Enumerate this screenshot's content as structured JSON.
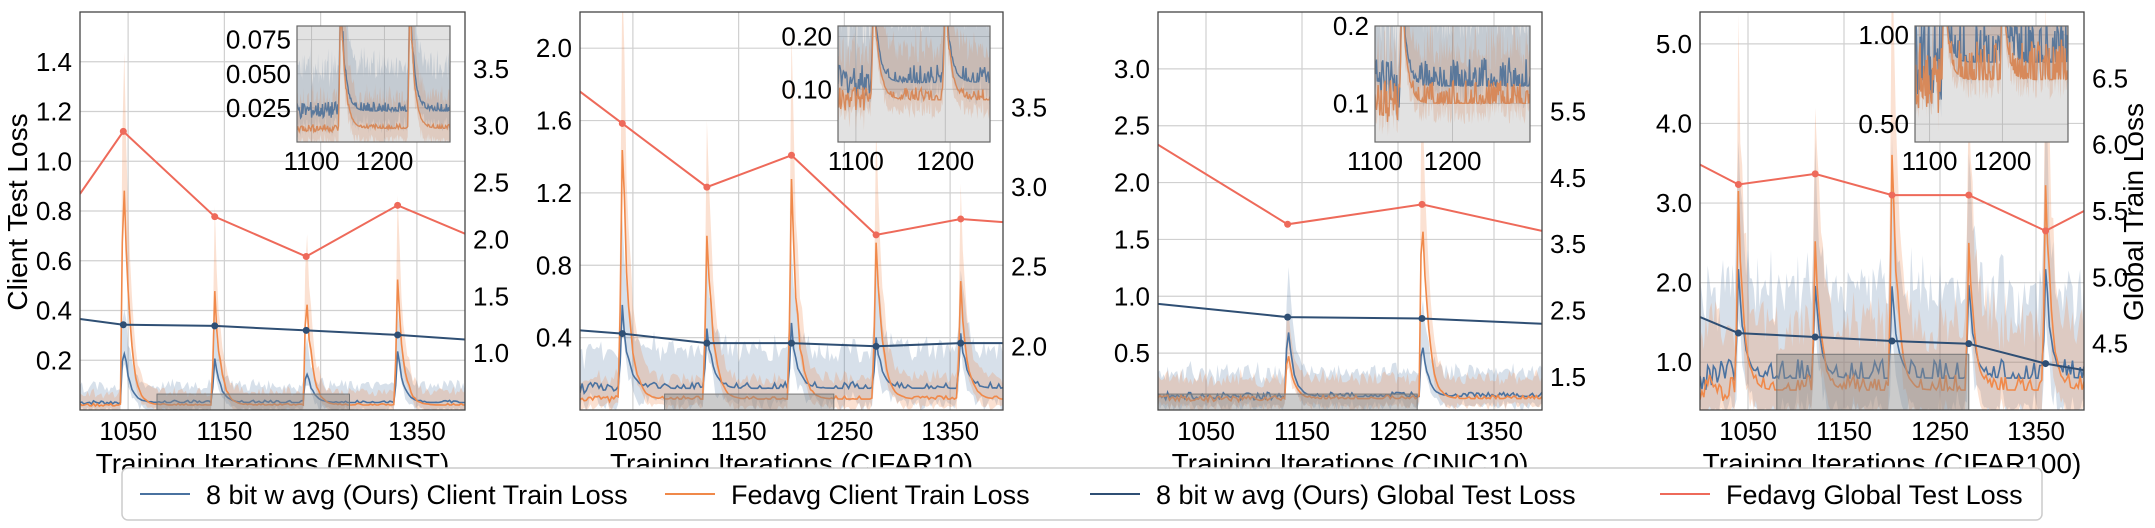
{
  "legend": [
    {
      "label": "8 bit w avg (Ours) Client Train Loss",
      "color": "#4a72a0"
    },
    {
      "label": "Fedavg Client Train Loss",
      "color": "#f0894a"
    },
    {
      "label": "8 bit w avg (Ours) Global Test Loss",
      "color": "#2f4f74"
    },
    {
      "label": "Fedavg Global Test Loss",
      "color": "#ee6a5a"
    }
  ],
  "left_axis_title": "Client Test Loss",
  "right_axis_title": "Global Train Loss",
  "chart_data": [
    {
      "type": "line",
      "xlabel": "Training Iterations (FMNIST)",
      "xlim": [
        1000,
        1400
      ],
      "xticks": [
        "1050",
        "1150",
        "1250",
        "1350"
      ],
      "ylim_left": [
        0,
        1.6
      ],
      "yticks_left": [
        "0.2",
        "0.4",
        "0.6",
        "0.8",
        "1.0",
        "1.2",
        "1.4"
      ],
      "ylim_right": [
        0.5,
        4.0
      ],
      "yticks_right": [
        "1.0",
        "1.5",
        "2.0",
        "2.5",
        "3.0",
        "3.5"
      ],
      "spikes": [
        1045,
        1140,
        1235,
        1330
      ],
      "ours_client": {
        "base": 0.03,
        "peaks": [
          0.28,
          0.22,
          0.17,
          0.24
        ]
      },
      "fedavg_client": {
        "base": 0.02,
        "peaks": [
          1.0,
          0.48,
          0.5,
          0.55
        ]
      },
      "global_series": [
        {
          "name": "8 bit w avg (Ours) Global Test Loss",
          "x": [
            1000,
            1045,
            1140,
            1235,
            1330,
            1400
          ],
          "y": [
            1.3,
            1.25,
            1.24,
            1.2,
            1.16,
            1.12
          ]
        },
        {
          "name": "Fedavg Global Test Loss",
          "x": [
            1000,
            1045,
            1140,
            1235,
            1330,
            1400
          ],
          "y": [
            2.4,
            2.95,
            2.2,
            1.85,
            2.3,
            2.05
          ]
        }
      ],
      "highlight": [
        1080,
        1280
      ],
      "inset": {
        "xlim": [
          1080,
          1290
        ],
        "ylim": [
          0.0,
          0.085
        ],
        "xticks": [
          "1100",
          "1200"
        ],
        "yticks": [
          "0.025",
          "0.050",
          "0.075"
        ],
        "spikes": [
          1140,
          1235
        ],
        "base": 0.01
      }
    },
    {
      "type": "line",
      "xlabel": "Training Iterations (CIFAR10)",
      "xlim": [
        1000,
        1400
      ],
      "xticks": [
        "1050",
        "1150",
        "1250",
        "1350"
      ],
      "ylim_left": [
        0,
        2.2
      ],
      "yticks_left": [
        "0.4",
        "0.8",
        "1.2",
        "1.6",
        "2.0"
      ],
      "ylim_right": [
        1.6,
        4.1
      ],
      "yticks_right": [
        "2.0",
        "2.5",
        "3.0",
        "3.5"
      ],
      "spikes": [
        1040,
        1120,
        1200,
        1280,
        1360
      ],
      "ours_client": {
        "base": 0.12,
        "peaks": [
          0.55,
          0.45,
          0.45,
          0.4,
          0.42
        ]
      },
      "fedavg_client": {
        "base": 0.06,
        "peaks": [
          1.55,
          1.0,
          1.22,
          0.97,
          0.7
        ]
      },
      "global_series": [
        {
          "name": "8 bit w avg (Ours) Global Test Loss",
          "x": [
            1000,
            1040,
            1120,
            1200,
            1280,
            1360,
            1400
          ],
          "y": [
            2.1,
            2.08,
            2.02,
            2.02,
            2.0,
            2.02,
            2.02
          ]
        },
        {
          "name": "Fedavg Global Test Loss",
          "x": [
            1000,
            1040,
            1120,
            1200,
            1280,
            1360,
            1400
          ],
          "y": [
            3.6,
            3.4,
            3.0,
            3.2,
            2.7,
            2.8,
            2.78
          ]
        }
      ],
      "highlight": [
        1080,
        1240
      ],
      "inset": {
        "xlim": [
          1080,
          1250
        ],
        "ylim": [
          0.0,
          0.22
        ],
        "xticks": [
          "1100",
          "1200"
        ],
        "yticks": [
          "0.10",
          "0.20"
        ],
        "spikes": [
          1120,
          1200
        ],
        "base": 0.08
      }
    },
    {
      "type": "line",
      "xlabel": "Training Iterations (CINIC10)",
      "xlim": [
        1000,
        1400
      ],
      "xticks": [
        "1050",
        "1150",
        "1250",
        "1350"
      ],
      "ylim_left": [
        0,
        3.5
      ],
      "yticks_left": [
        "0.5",
        "1.0",
        "1.5",
        "2.0",
        "2.5",
        "3.0"
      ],
      "ylim_right": [
        1.0,
        7.0
      ],
      "yticks_right": [
        "1.5",
        "2.5",
        "3.5",
        "4.5",
        "5.5"
      ],
      "spikes": [
        1135,
        1275
      ],
      "ours_client": {
        "base": 0.12,
        "peaks": [
          0.75,
          0.65
        ]
      },
      "fedavg_client": {
        "base": 0.1,
        "peaks": [
          0.55,
          2.0
        ]
      },
      "global_series": [
        {
          "name": "8 bit w avg (Ours) Global Test Loss",
          "x": [
            1000,
            1135,
            1275,
            1400
          ],
          "y": [
            2.6,
            2.4,
            2.38,
            2.3
          ]
        },
        {
          "name": "Fedavg Global Test Loss",
          "x": [
            1000,
            1135,
            1275,
            1400
          ],
          "y": [
            5.0,
            3.8,
            4.1,
            3.7
          ]
        }
      ],
      "highlight": [
        1000,
        1270
      ],
      "inset": {
        "xlim": [
          1100,
          1300
        ],
        "ylim": [
          0.05,
          0.2
        ],
        "xticks": [
          "1100",
          "1200"
        ],
        "yticks": [
          "0.1",
          "0.2"
        ],
        "spikes": [
          1135
        ],
        "base": 0.1
      }
    },
    {
      "type": "line",
      "xlabel": "Training Iterations (CIFAR100)",
      "xlim": [
        1000,
        1400
      ],
      "xticks": [
        "1050",
        "1150",
        "1250",
        "1350"
      ],
      "ylim_left": [
        0.4,
        5.4
      ],
      "yticks_left": [
        "1.0",
        "2.0",
        "3.0",
        "4.0",
        "5.0"
      ],
      "ylim_right": [
        4.0,
        7.0
      ],
      "yticks_right": [
        "4.5",
        "5.0",
        "5.5",
        "6.0",
        "6.5"
      ],
      "spikes": [
        1040,
        1120,
        1200,
        1280,
        1360
      ],
      "ours_client": {
        "base": 0.8,
        "peaks": [
          2.2,
          2.0,
          2.0,
          2.0,
          2.2
        ]
      },
      "fedavg_client": {
        "base": 0.65,
        "peaks": [
          3.0,
          2.6,
          3.8,
          2.6,
          3.4
        ]
      },
      "global_series": [
        {
          "name": "8 bit w avg (Ours) Global Test Loss",
          "x": [
            1000,
            1040,
            1120,
            1200,
            1280,
            1360,
            1400
          ],
          "y": [
            4.7,
            4.58,
            4.55,
            4.52,
            4.5,
            4.35,
            4.3
          ]
        },
        {
          "name": "Fedavg Global Test Loss",
          "x": [
            1000,
            1040,
            1120,
            1200,
            1280,
            1360,
            1400
          ],
          "y": [
            5.85,
            5.7,
            5.78,
            5.62,
            5.62,
            5.35,
            5.5
          ]
        }
      ],
      "highlight": [
        1080,
        1280
      ],
      "inset": {
        "xlim": [
          1080,
          1290
        ],
        "ylim": [
          0.4,
          1.05
        ],
        "xticks": [
          "1100",
          "1200"
        ],
        "yticks": [
          "0.50",
          "1.00"
        ],
        "spikes": [
          1120,
          1200
        ],
        "base": 0.75
      }
    }
  ]
}
